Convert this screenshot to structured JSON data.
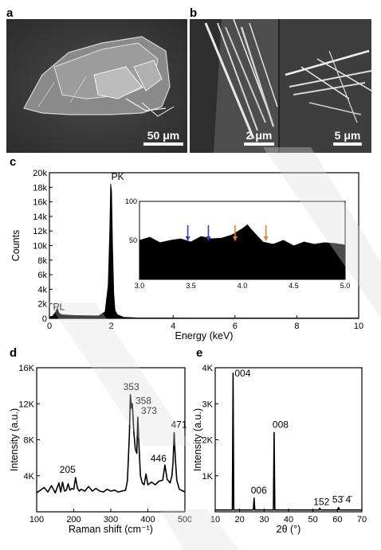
{
  "panels": {
    "a": {
      "letter": "a",
      "scale": "50 μm"
    },
    "b": {
      "letter": "b",
      "scale_left": "2 μm",
      "scale_right": "5 μm"
    }
  },
  "chart_data": [
    {
      "id": "c",
      "letter": "c",
      "type": "area",
      "xlabel": "Energy (keV)",
      "ylabel": "Counts",
      "xlim": [
        0,
        10
      ],
      "ylim": [
        0,
        20000
      ],
      "xticks": [
        "0",
        "2",
        "4",
        "6",
        "8",
        "10"
      ],
      "yticks": [
        "0",
        "2k",
        "4k",
        "6k",
        "8k",
        "10k",
        "12k",
        "14k",
        "16k",
        "18k",
        "20k"
      ],
      "series": [
        {
          "x": [
            0.0,
            0.1,
            0.2,
            0.26,
            0.3,
            0.35,
            0.4,
            0.6,
            0.8,
            1.0,
            1.2,
            1.4,
            1.6,
            1.8,
            1.9,
            1.95,
            1.98,
            2.01,
            2.04,
            2.08,
            2.12,
            2.2,
            2.4,
            2.8,
            3.5,
            4.5,
            5.5,
            6.5,
            7.5,
            8.5,
            9.5,
            10.0
          ],
          "y": [
            200,
            300,
            900,
            1400,
            800,
            600,
            500,
            450,
            400,
            380,
            360,
            350,
            360,
            900,
            4500,
            12000,
            18500,
            17500,
            10000,
            3500,
            1100,
            500,
            150,
            80,
            70,
            60,
            60,
            55,
            55,
            50,
            50,
            50
          ]
        }
      ],
      "annotations": [
        {
          "text": "PK",
          "x": 2.0,
          "y": 18800
        },
        {
          "text": "PL",
          "x": 0.15,
          "y": 700
        }
      ],
      "inset": {
        "type": "area",
        "xlim": [
          3.0,
          5.0
        ],
        "ylim": [
          0,
          100
        ],
        "xticks": [
          "3.0",
          "3.5",
          "4.0",
          "4.5",
          "5.0"
        ],
        "yticks": [
          "50",
          "100"
        ],
        "series": [
          {
            "x": [
              3.0,
              3.1,
              3.2,
              3.3,
              3.4,
              3.5,
              3.6,
              3.7,
              3.8,
              3.9,
              4.0,
              4.05,
              4.1,
              4.2,
              4.3,
              4.4,
              4.5,
              4.6,
              4.7,
              4.8,
              4.9,
              5.0
            ],
            "y": [
              50,
              54,
              47,
              50,
              52,
              48,
              55,
              52,
              53,
              57,
              65,
              70,
              62,
              48,
              45,
              50,
              43,
              48,
              45,
              47,
              46,
              44
            ]
          }
        ],
        "arrows": [
          {
            "x": 3.47,
            "color": "#2a3fd6"
          },
          {
            "x": 3.67,
            "color": "#2a3fd6"
          },
          {
            "x": 3.93,
            "color": "#f07d1e"
          },
          {
            "x": 4.23,
            "color": "#f07d1e"
          }
        ]
      }
    },
    {
      "id": "d",
      "letter": "d",
      "type": "line",
      "xlabel": "Raman shift (cm⁻¹)",
      "ylabel": "Intensity (a.u.)",
      "xlim": [
        100,
        500
      ],
      "ylim": [
        0,
        16000
      ],
      "xticks": [
        "100",
        "200",
        "300",
        "400",
        "500"
      ],
      "yticks": [
        "4K",
        "8K",
        "12K",
        "16K"
      ],
      "series": [
        {
          "x": [
            100,
            120,
            130,
            140,
            150,
            160,
            165,
            170,
            175,
            180,
            185,
            190,
            195,
            200,
            205,
            210,
            215,
            220,
            230,
            240,
            250,
            260,
            270,
            280,
            290,
            300,
            310,
            320,
            330,
            340,
            345,
            350,
            353,
            356,
            358,
            362,
            366,
            370,
            373,
            376,
            380,
            385,
            390,
            395,
            400,
            410,
            420,
            430,
            440,
            446,
            452,
            460,
            465,
            468,
            471,
            474,
            478,
            485,
            500
          ],
          "y": [
            2100,
            2700,
            2200,
            2900,
            2100,
            3200,
            2200,
            3300,
            2300,
            2400,
            3100,
            2400,
            2600,
            2500,
            3800,
            2600,
            2300,
            2500,
            2300,
            2800,
            2300,
            2600,
            2300,
            2200,
            2500,
            2300,
            2400,
            2200,
            2300,
            2400,
            3500,
            8500,
            13000,
            11500,
            12000,
            9000,
            7000,
            6500,
            10500,
            7500,
            4000,
            3200,
            3000,
            4200,
            3000,
            3300,
            3000,
            3400,
            3500,
            5200,
            3600,
            3200,
            4000,
            5500,
            8800,
            6000,
            3500,
            2500,
            2200
          ]
        }
      ],
      "annotations": [
        {
          "text": "353",
          "x": 353,
          "y": 13000
        },
        {
          "text": "358",
          "x": 358,
          "y": 12000
        },
        {
          "text": "373",
          "x": 373,
          "y": 10500
        },
        {
          "text": "471",
          "x": 471,
          "y": 8800
        },
        {
          "text": "205",
          "x": 205,
          "y": 3800
        },
        {
          "text": "446",
          "x": 446,
          "y": 5200
        }
      ]
    },
    {
      "id": "e",
      "letter": "e",
      "type": "line",
      "xlabel": "2θ (°)",
      "ylabel": "Intensity (a.u.)",
      "xlim": [
        10,
        70
      ],
      "ylim": [
        0,
        4000
      ],
      "xticks": [
        "10",
        "20",
        "30",
        "40",
        "50",
        "60",
        "70"
      ],
      "yticks": [
        "1K",
        "2K",
        "3K",
        "4K"
      ],
      "series": [
        {
          "x": [
            10,
            17.0,
            17.3,
            17.6,
            18.0,
            25.6,
            25.9,
            26.2,
            33.8,
            34.1,
            34.4,
            34.8,
            52.5,
            52.8,
            53.1,
            60.2,
            60.5,
            60.8,
            70
          ],
          "y": [
            50,
            50,
            3850,
            50,
            50,
            50,
            380,
            50,
            50,
            2200,
            50,
            50,
            50,
            100,
            50,
            50,
            120,
            50,
            50
          ]
        }
      ],
      "annotations": [
        {
          "text": "004",
          "x": 17.3,
          "y": 3850
        },
        {
          "text": "006",
          "x": 25.9,
          "y": 380
        },
        {
          "text": "008",
          "x": 34.1,
          "y": 2200
        },
        {
          "text": "152",
          "x": 52.8,
          "y": 100
        },
        {
          "text": "53̄ 4̄",
          "x": 60.5,
          "y": 120
        }
      ]
    }
  ]
}
